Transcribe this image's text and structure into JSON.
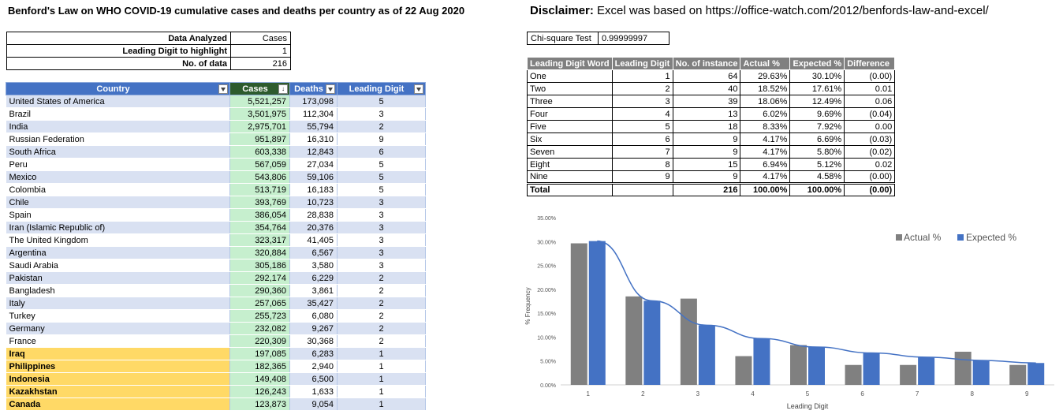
{
  "header": {
    "title": "Benford's Law on WHO COVID-19 cumulative cases and deaths per country as of 22 Aug 2020",
    "disclaimer_label": "Disclaimer:",
    "disclaimer_text": " Excel was based on https://office-watch.com/2012/benfords-law-and-excel/"
  },
  "summary": {
    "rows": [
      {
        "label": "Data Analyzed",
        "value": "Cases"
      },
      {
        "label": "Leading Digit to highlight",
        "value": "1"
      },
      {
        "label": "No. of data",
        "value": "216"
      }
    ]
  },
  "country_table": {
    "headers": [
      "Country",
      "Cases",
      "Deaths",
      "Leading Digit"
    ],
    "rows": [
      {
        "country": "United States of America",
        "cases": "5,521,257",
        "deaths": "173,098",
        "digit": "5"
      },
      {
        "country": "Brazil",
        "cases": "3,501,975",
        "deaths": "112,304",
        "digit": "3"
      },
      {
        "country": "India",
        "cases": "2,975,701",
        "deaths": "55,794",
        "digit": "2"
      },
      {
        "country": "Russian Federation",
        "cases": "951,897",
        "deaths": "16,310",
        "digit": "9"
      },
      {
        "country": "South Africa",
        "cases": "603,338",
        "deaths": "12,843",
        "digit": "6"
      },
      {
        "country": "Peru",
        "cases": "567,059",
        "deaths": "27,034",
        "digit": "5"
      },
      {
        "country": "Mexico",
        "cases": "543,806",
        "deaths": "59,106",
        "digit": "5"
      },
      {
        "country": "Colombia",
        "cases": "513,719",
        "deaths": "16,183",
        "digit": "5"
      },
      {
        "country": "Chile",
        "cases": "393,769",
        "deaths": "10,723",
        "digit": "3"
      },
      {
        "country": "Spain",
        "cases": "386,054",
        "deaths": "28,838",
        "digit": "3"
      },
      {
        "country": "Iran (Islamic Republic of)",
        "cases": "354,764",
        "deaths": "20,376",
        "digit": "3"
      },
      {
        "country": "The United Kingdom",
        "cases": "323,317",
        "deaths": "41,405",
        "digit": "3"
      },
      {
        "country": "Argentina",
        "cases": "320,884",
        "deaths": "6,567",
        "digit": "3"
      },
      {
        "country": "Saudi Arabia",
        "cases": "305,186",
        "deaths": "3,580",
        "digit": "3"
      },
      {
        "country": "Pakistan",
        "cases": "292,174",
        "deaths": "6,229",
        "digit": "2"
      },
      {
        "country": "Bangladesh",
        "cases": "290,360",
        "deaths": "3,861",
        "digit": "2"
      },
      {
        "country": "Italy",
        "cases": "257,065",
        "deaths": "35,427",
        "digit": "2"
      },
      {
        "country": "Turkey",
        "cases": "255,723",
        "deaths": "6,080",
        "digit": "2"
      },
      {
        "country": "Germany",
        "cases": "232,082",
        "deaths": "9,267",
        "digit": "2"
      },
      {
        "country": "France",
        "cases": "220,309",
        "deaths": "30,368",
        "digit": "2"
      },
      {
        "country": "Iraq",
        "cases": "197,085",
        "deaths": "6,283",
        "digit": "1"
      },
      {
        "country": "Philippines",
        "cases": "182,365",
        "deaths": "2,940",
        "digit": "1"
      },
      {
        "country": "Indonesia",
        "cases": "149,408",
        "deaths": "6,500",
        "digit": "1"
      },
      {
        "country": "Kazakhstan",
        "cases": "126,243",
        "deaths": "1,633",
        "digit": "1"
      },
      {
        "country": "Canada",
        "cases": "123,873",
        "deaths": "9,054",
        "digit": "1"
      }
    ]
  },
  "chi_square": {
    "label": "Chi-square Test",
    "value": "0.99999997"
  },
  "benford_table": {
    "headers": [
      "Leading Digit Word",
      "Leading Digit",
      "No. of instance",
      "Actual %",
      "Expected %",
      "Difference"
    ],
    "rows": [
      {
        "word": "One",
        "digit": "1",
        "count": "64",
        "actual": "29.63%",
        "expected": "30.10%",
        "diff": "(0.00)"
      },
      {
        "word": "Two",
        "digit": "2",
        "count": "40",
        "actual": "18.52%",
        "expected": "17.61%",
        "diff": "0.01"
      },
      {
        "word": "Three",
        "digit": "3",
        "count": "39",
        "actual": "18.06%",
        "expected": "12.49%",
        "diff": "0.06"
      },
      {
        "word": "Four",
        "digit": "4",
        "count": "13",
        "actual": "6.02%",
        "expected": "9.69%",
        "diff": "(0.04)"
      },
      {
        "word": "Five",
        "digit": "5",
        "count": "18",
        "actual": "8.33%",
        "expected": "7.92%",
        "diff": "0.00"
      },
      {
        "word": "Six",
        "digit": "6",
        "count": "9",
        "actual": "4.17%",
        "expected": "6.69%",
        "diff": "(0.03)"
      },
      {
        "word": "Seven",
        "digit": "7",
        "count": "9",
        "actual": "4.17%",
        "expected": "5.80%",
        "diff": "(0.02)"
      },
      {
        "word": "Eight",
        "digit": "8",
        "count": "15",
        "actual": "6.94%",
        "expected": "5.12%",
        "diff": "0.02"
      },
      {
        "word": "Nine",
        "digit": "9",
        "count": "9",
        "actual": "4.17%",
        "expected": "4.58%",
        "diff": "(0.00)"
      }
    ],
    "total": {
      "word": "Total",
      "digit": "",
      "count": "216",
      "actual": "100.00%",
      "expected": "100.00%",
      "diff": "(0.00)"
    }
  },
  "colors": {
    "actual": "#808080",
    "expected": "#4472c4",
    "header_blue": "#4472c4",
    "cases_green": "#c6efce",
    "highlight_yellow": "#ffd966"
  },
  "chart_data": {
    "type": "bar",
    "title": "",
    "xlabel": "Leading Digit",
    "ylabel": "% Frequency",
    "categories": [
      "1",
      "2",
      "3",
      "4",
      "5",
      "6",
      "7",
      "8",
      "9"
    ],
    "series": [
      {
        "name": "Actual %",
        "values": [
          29.63,
          18.52,
          18.06,
          6.02,
          8.33,
          4.17,
          4.17,
          6.94,
          4.17
        ]
      },
      {
        "name": "Expected %",
        "values": [
          30.1,
          17.61,
          12.49,
          9.69,
          7.92,
          6.69,
          5.8,
          5.12,
          4.58
        ]
      }
    ],
    "trendline": "expected",
    "ylim": [
      0,
      35
    ],
    "yticks": [
      "0.00%",
      "5.00%",
      "10.00%",
      "15.00%",
      "20.00%",
      "25.00%",
      "30.00%",
      "35.00%"
    ],
    "legend_position": "top-right",
    "grid": false
  }
}
